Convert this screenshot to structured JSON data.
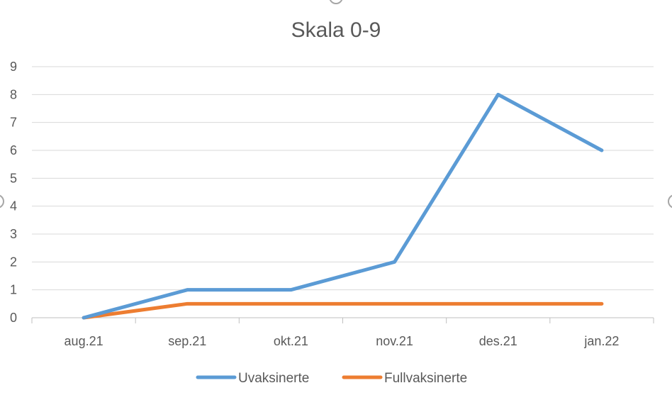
{
  "chart_data": {
    "type": "line",
    "title": "Skala 0-9",
    "xlabel": "",
    "ylabel": "",
    "categories": [
      "aug.21",
      "sep.21",
      "okt.21",
      "nov.21",
      "des.21",
      "jan.22"
    ],
    "ylim": [
      0,
      9
    ],
    "yticks": [
      0,
      1,
      2,
      3,
      4,
      5,
      6,
      7,
      8,
      9
    ],
    "grid": true,
    "legend_position": "bottom",
    "series": [
      {
        "name": "Uvaksinerte",
        "color": "#5b9bd5",
        "values": [
          0,
          1,
          1,
          2,
          8,
          6
        ]
      },
      {
        "name": "Fullvaksinerte",
        "color": "#ed7d31",
        "values": [
          0,
          0.5,
          0.5,
          0.5,
          0.5,
          0.5
        ]
      }
    ]
  }
}
